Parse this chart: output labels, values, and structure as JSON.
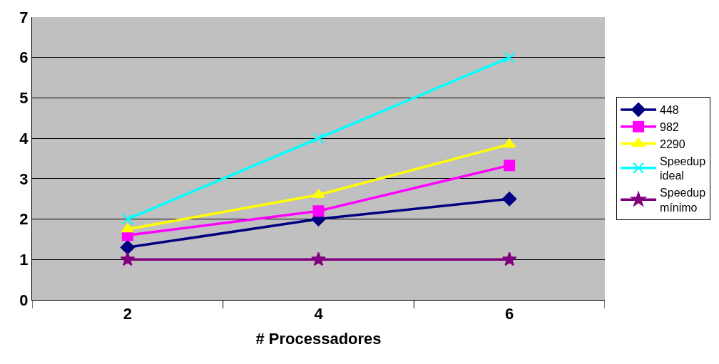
{
  "chart_data": {
    "type": "line",
    "xlabel": "# Processadores",
    "categories": [
      "2",
      "4",
      "6"
    ],
    "series": [
      {
        "name": "448",
        "color": "#000080",
        "marker": "diamond",
        "values": [
          1.3,
          2.0,
          2.5
        ]
      },
      {
        "name": "982",
        "color": "#ff00ff",
        "marker": "square",
        "values": [
          1.6,
          2.2,
          3.33
        ]
      },
      {
        "name": "2290",
        "color": "#ffff00",
        "marker": "triangle",
        "values": [
          1.75,
          2.6,
          3.85
        ]
      },
      {
        "name": "Speedup ideal",
        "color": "#00ffff",
        "marker": "cross",
        "values": [
          2,
          4,
          6
        ]
      },
      {
        "name": "Speedup mínimo",
        "color": "#800080",
        "marker": "star",
        "values": [
          1,
          1,
          1
        ]
      }
    ],
    "ylim": [
      0,
      7
    ],
    "yticks": [
      0,
      1,
      2,
      3,
      4,
      5,
      6,
      7
    ],
    "grid": "y",
    "legend": "right"
  }
}
